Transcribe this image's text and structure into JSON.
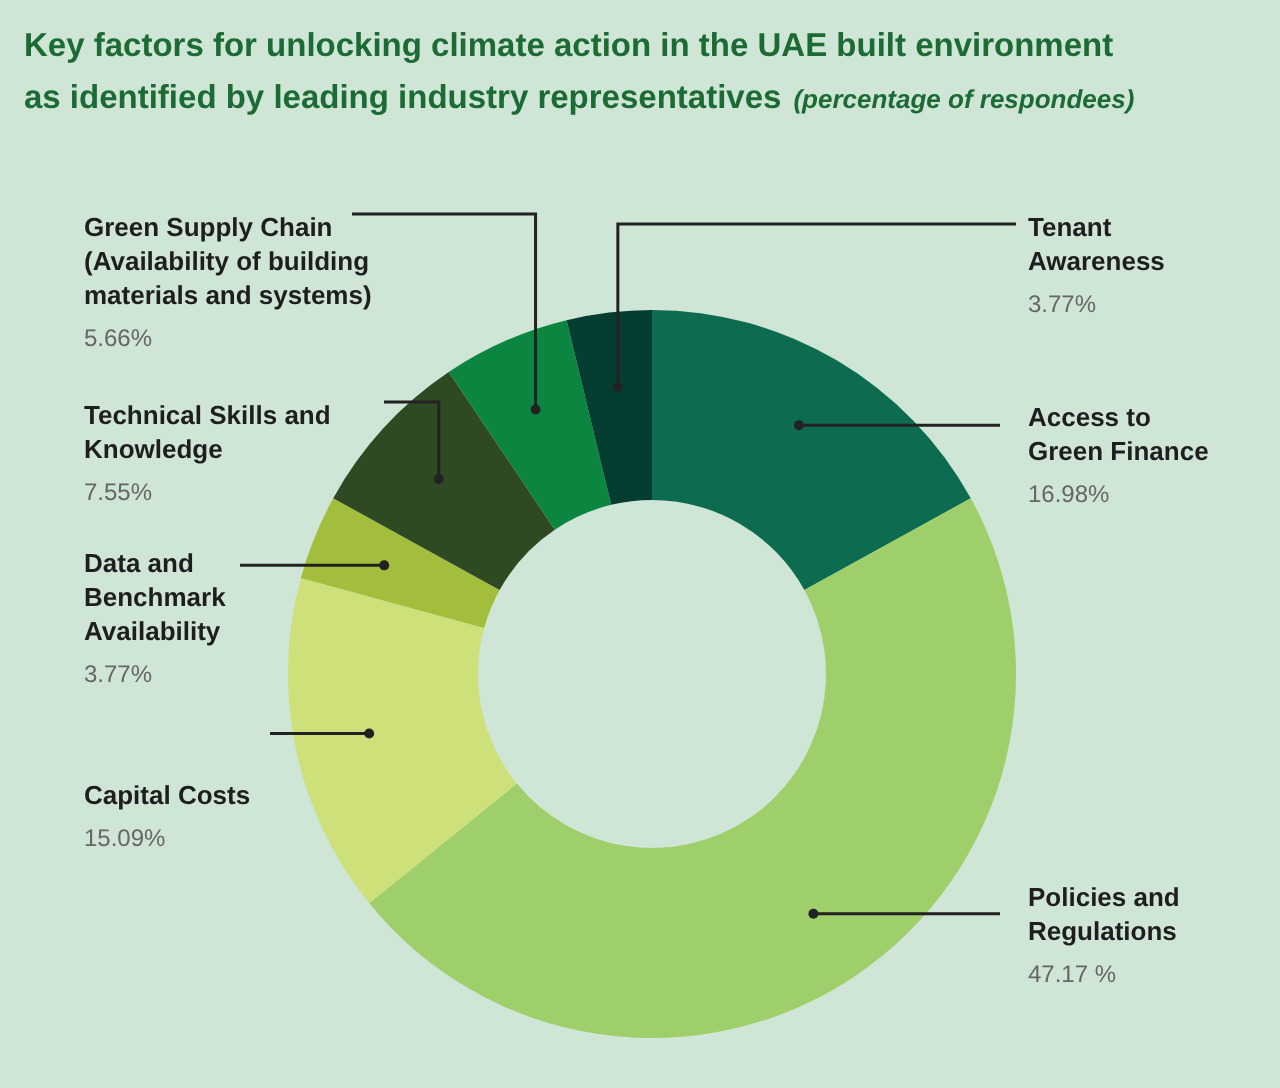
{
  "chart_data": {
    "type": "donut",
    "title": "Key factors for unlocking climate action in the UAE built environment as identified by leading industry representatives",
    "subtitle": "(percentage of respondees)",
    "categories": [
      "Access to Green Finance",
      "Policies and Regulations",
      "Capital Costs",
      "Data and Benchmark Availability",
      "Technical Skills and Knowledge",
      "Green Supply Chain (Availability of building materials and systems)",
      "Tenant Awareness"
    ],
    "values": [
      16.98,
      47.17,
      15.09,
      3.77,
      7.55,
      5.66,
      3.77
    ],
    "value_labels": [
      "16.98%",
      "47.17 %",
      "15.09%",
      "3.77%",
      "7.55%",
      "5.66%",
      "3.77%"
    ],
    "colors": [
      "#0d6b50",
      "#9fcf6a",
      "#cde07a",
      "#a3be3c",
      "#2f4a22",
      "#0b8540",
      "#063d33"
    ],
    "legend": false
  }
}
